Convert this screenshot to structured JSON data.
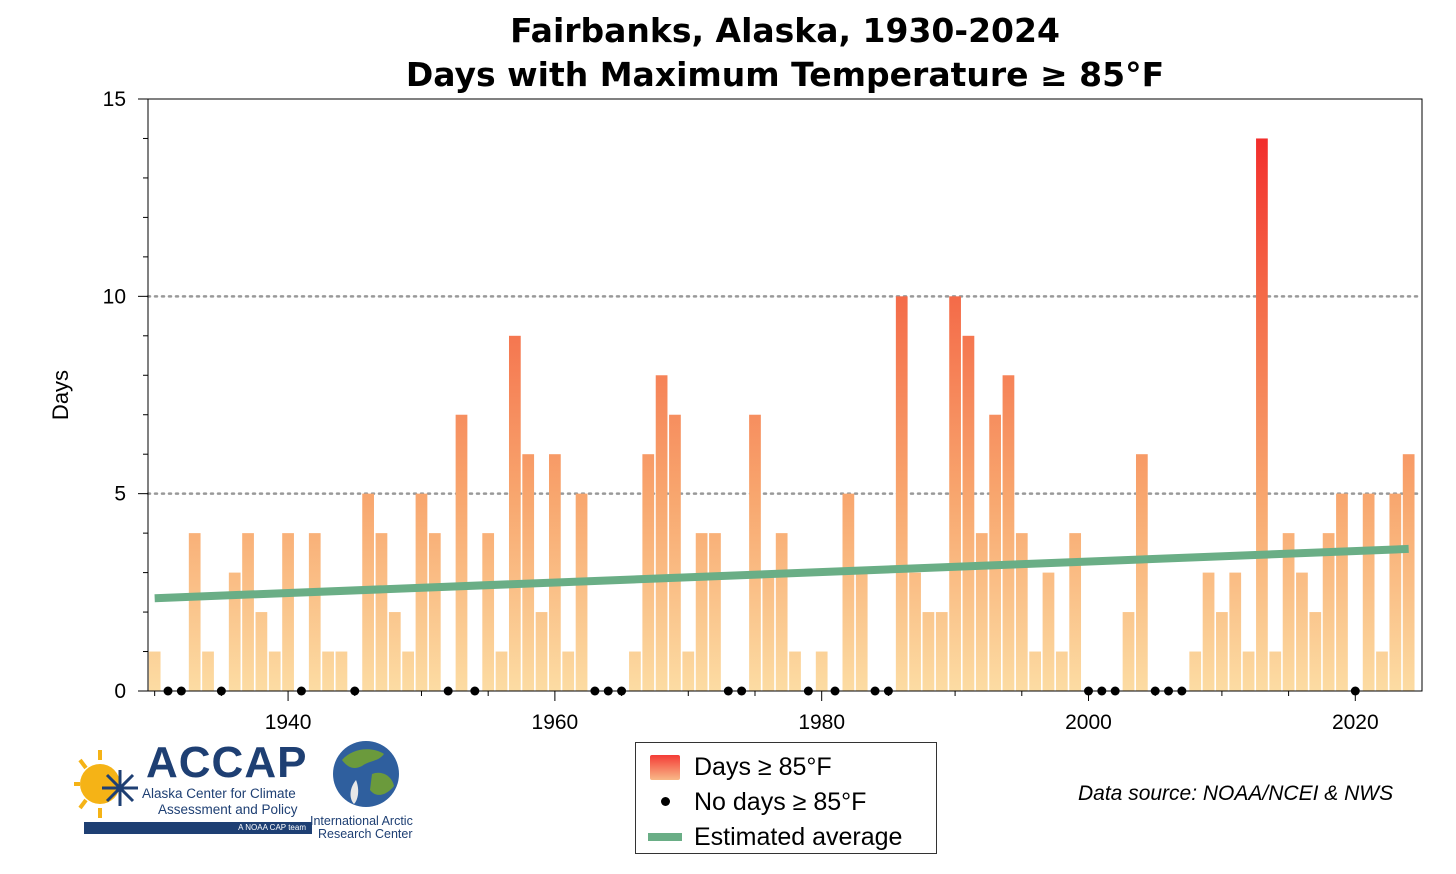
{
  "title_line1": "Fairbanks, Alaska, 1930-2024",
  "title_line2": "Days with Maximum Temperature ≥ 85°F",
  "chart_data": {
    "type": "bar",
    "ylabel": "Days",
    "xlim": [
      1929.5,
      2025
    ],
    "ylim": [
      0,
      15
    ],
    "x_ticks": [
      1940,
      1960,
      1980,
      2000,
      2020
    ],
    "y_ticks": [
      0,
      5,
      10,
      15
    ],
    "gridlines_y": [
      5,
      10
    ],
    "years": [
      1930,
      1931,
      1932,
      1933,
      1934,
      1935,
      1936,
      1937,
      1938,
      1939,
      1940,
      1941,
      1942,
      1943,
      1944,
      1945,
      1946,
      1947,
      1948,
      1949,
      1950,
      1951,
      1952,
      1953,
      1954,
      1955,
      1956,
      1957,
      1958,
      1959,
      1960,
      1961,
      1962,
      1963,
      1964,
      1965,
      1966,
      1967,
      1968,
      1969,
      1970,
      1971,
      1972,
      1973,
      1974,
      1975,
      1976,
      1977,
      1978,
      1979,
      1980,
      1981,
      1982,
      1983,
      1984,
      1985,
      1986,
      1987,
      1988,
      1989,
      1990,
      1991,
      1992,
      1993,
      1994,
      1995,
      1996,
      1997,
      1998,
      1999,
      2000,
      2001,
      2002,
      2003,
      2004,
      2005,
      2006,
      2007,
      2008,
      2009,
      2010,
      2011,
      2012,
      2013,
      2014,
      2015,
      2016,
      2017,
      2018,
      2019,
      2020,
      2021,
      2022,
      2023,
      2024
    ],
    "values": [
      1,
      0,
      0,
      4,
      1,
      0,
      3,
      4,
      2,
      1,
      4,
      0,
      4,
      1,
      1,
      0,
      5,
      4,
      2,
      1,
      5,
      4,
      0,
      7,
      0,
      4,
      1,
      9,
      6,
      2,
      6,
      1,
      5,
      0,
      0,
      0,
      1,
      6,
      8,
      7,
      1,
      4,
      4,
      0,
      0,
      7,
      3,
      4,
      1,
      0,
      1,
      0,
      5,
      3,
      0,
      0,
      10,
      3,
      2,
      2,
      10,
      9,
      4,
      7,
      8,
      4,
      1,
      3,
      1,
      4,
      0,
      0,
      0,
      2,
      6,
      0,
      0,
      0,
      1,
      3,
      2,
      3,
      1,
      14,
      1,
      4,
      3,
      2,
      4,
      5,
      0,
      5,
      1,
      5,
      6
    ],
    "trend": {
      "name": "Estimated average",
      "start": [
        1930,
        2.35
      ],
      "end": [
        2024,
        3.6
      ]
    },
    "legend": [
      "Days ≥ 85°F",
      "No days ≥ 85°F",
      "Estimated average"
    ],
    "legend_position": "bottom-center",
    "colors": {
      "bar_low": "#fbdfa4",
      "bar_high": "#f4302e",
      "trend": "#6aae86",
      "zero_dot": "#000000"
    }
  },
  "source": "Data source: NOAA/NCEI & NWS",
  "logos": {
    "accap": {
      "name": "ACCAP",
      "line1": "Alaska Center for Climate",
      "line2": "Assessment and Policy",
      "tag": "A NOAA CAP team"
    },
    "iarc": {
      "line1": "International Arctic",
      "line2": "Research Center"
    }
  }
}
